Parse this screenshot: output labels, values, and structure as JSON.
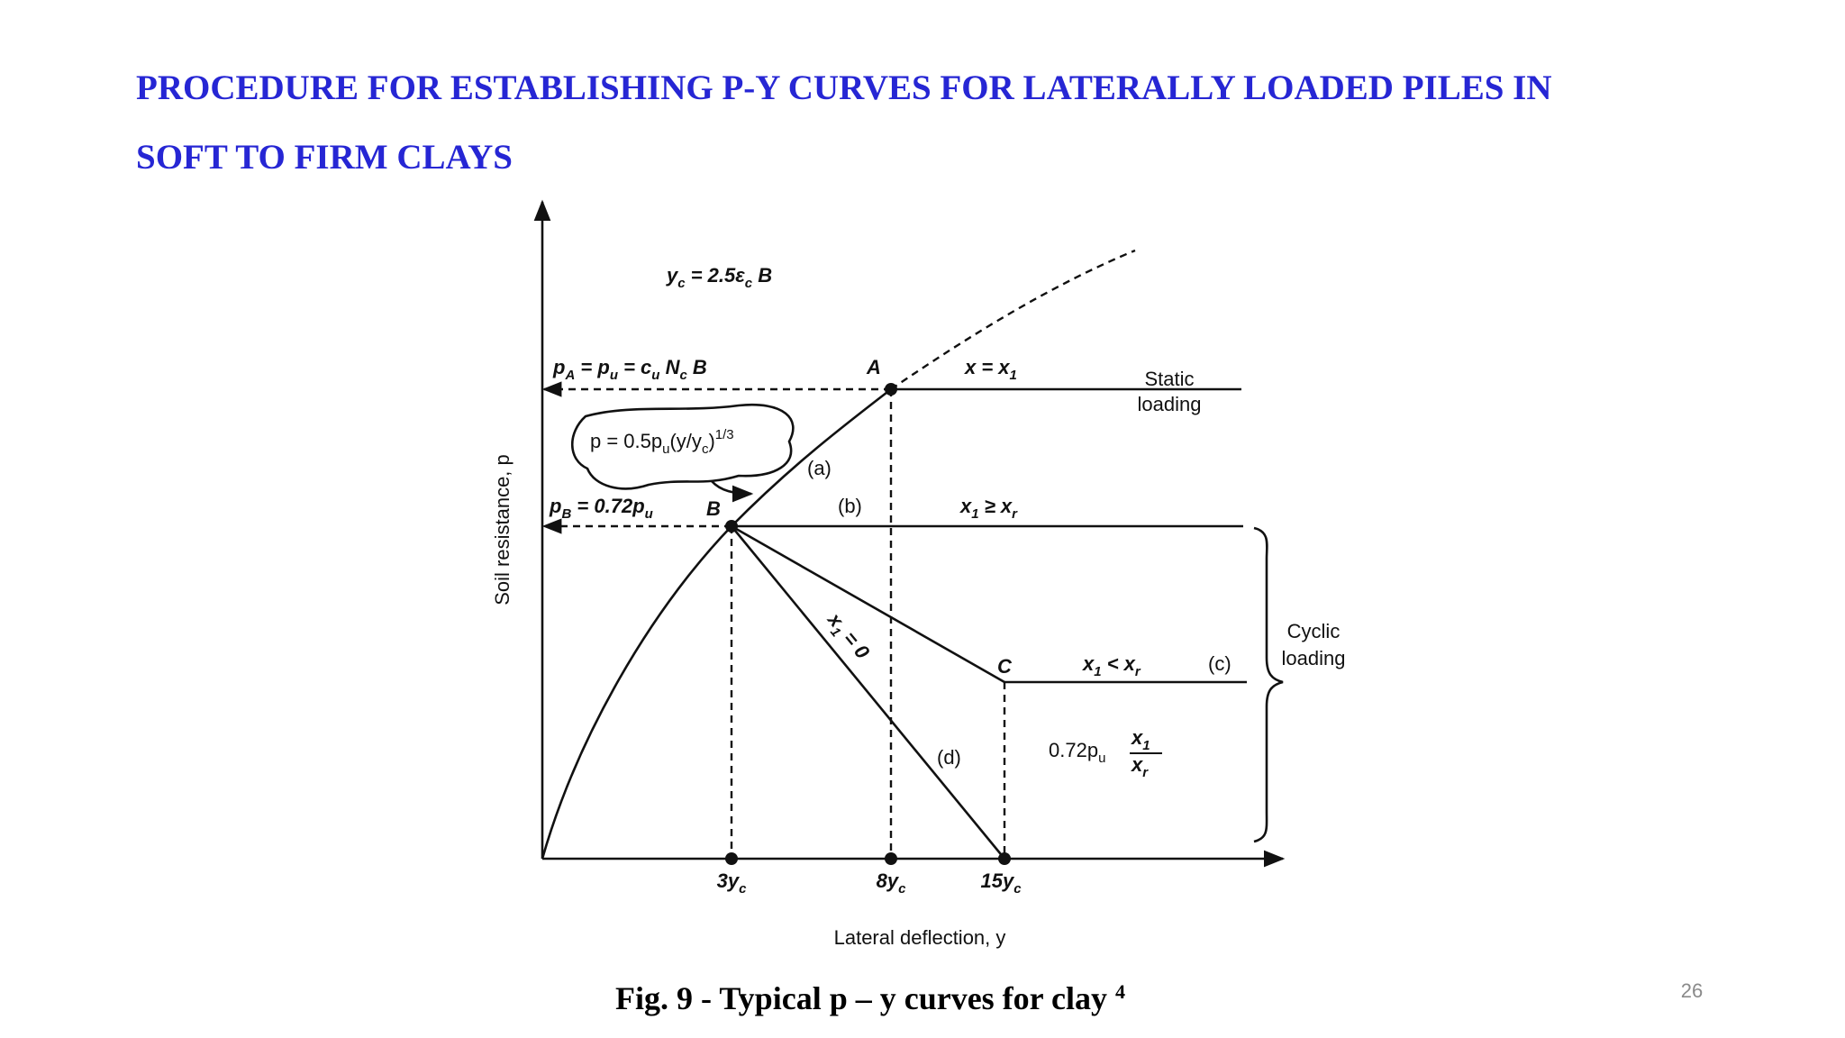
{
  "title": {
    "line1": "PROCEDURE FOR ESTABLISHING P-Y CURVES FOR LATERALLY LOADED PILES IN",
    "line2": "SOFT TO FIRM CLAYS"
  },
  "diagram": {
    "yc_formula": [
      "y",
      "c",
      " = 2.5ε",
      "c",
      " B"
    ],
    "pa_formula": [
      "p",
      "A",
      " = p",
      "u",
      " = c",
      "u",
      " N",
      "c",
      " B"
    ],
    "point_a": "A",
    "x_eq_x1": [
      "x = x",
      "1"
    ],
    "static_loading": [
      "Static",
      "loading"
    ],
    "curve_formula": [
      "p = 0.5p",
      "u",
      "(y/y",
      "c",
      ")",
      "1/3"
    ],
    "label_a": "(a)",
    "pb_formula": [
      "p",
      "B",
      " = 0.72p",
      "u"
    ],
    "point_b": "B",
    "label_b": "(b)",
    "x1_ge_xr": [
      "x",
      "1",
      " ≥ x",
      "r"
    ],
    "x1_eq_0": [
      "x",
      "1",
      " = 0"
    ],
    "cyclic_loading": [
      "Cyclic",
      "loading"
    ],
    "point_c": "C",
    "x1_lt_xr": [
      "x",
      "1",
      " < x",
      "r"
    ],
    "label_c": "(c)",
    "label_d": "(d)",
    "pc_formula": [
      "0.72p",
      "u",
      "x",
      "1",
      "x",
      "r"
    ],
    "x_ticks": [
      [
        "3y",
        "c"
      ],
      [
        "8y",
        "c"
      ],
      [
        "15y",
        "c"
      ]
    ],
    "x_axis_label": "Lateral deflection, y",
    "y_axis_label": "Soil resistance, p"
  },
  "caption": {
    "text": "Fig. 9 - Typical p – y curves for clay ",
    "ref": "4"
  },
  "page_number": "26"
}
